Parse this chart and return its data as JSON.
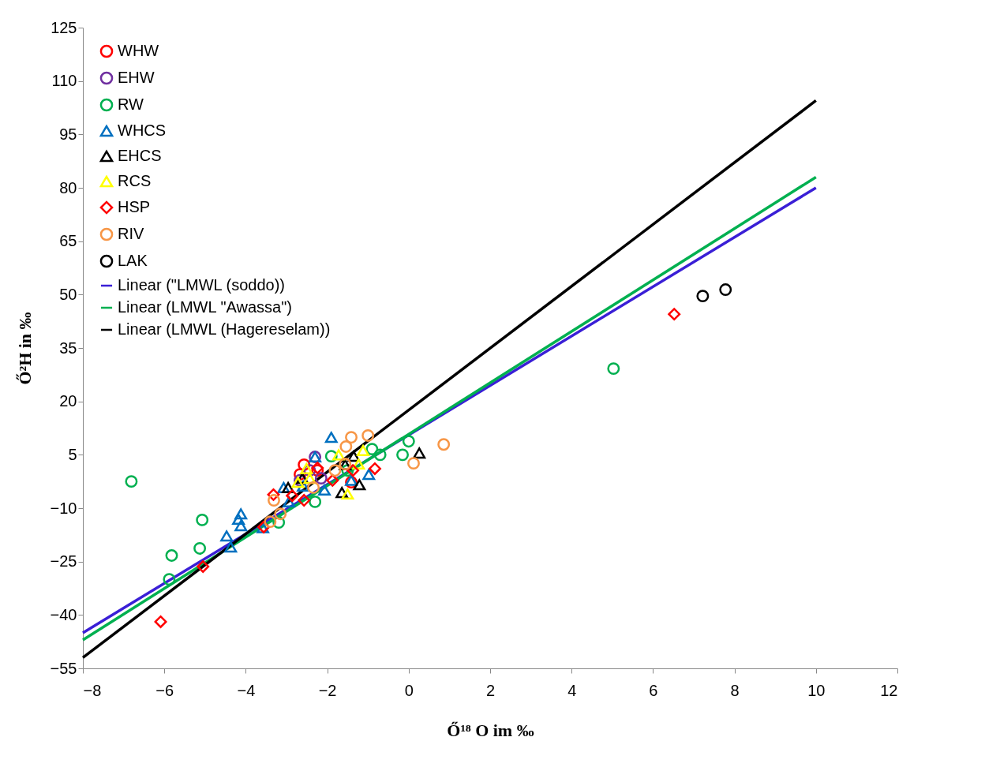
{
  "chart_data": {
    "type": "scatter",
    "xlabel": "Ő¹⁸ O im ‰",
    "ylabel": "Ő²H in ‰",
    "xlim": [
      -8,
      12
    ],
    "xticks": [
      -8,
      -6,
      -4,
      -2,
      0,
      2,
      4,
      6,
      8,
      10,
      12
    ],
    "ylim": [
      -55,
      125
    ],
    "yticks": [
      -55,
      -40,
      -25,
      -10,
      5,
      20,
      35,
      50,
      65,
      80,
      95,
      110,
      125
    ],
    "grid": false,
    "legend": "top left",
    "series": [
      {
        "name": "WHW",
        "color": "#ff0000",
        "marker": "circle",
        "x": [
          -2.57,
          -2.24,
          -2.67,
          -1.41
        ],
        "values": [
          2.2,
          0.6,
          -0.5,
          -2.7
        ]
      },
      {
        "name": "EHW",
        "color": "#7030a0",
        "marker": "circle",
        "x": [
          -2.3,
          -2.67,
          -2.43,
          -2.15
        ],
        "values": [
          4.4,
          -2.2,
          0.6,
          -1.6
        ]
      },
      {
        "name": "RW",
        "color": "#00b050",
        "marker": "circle",
        "x": [
          -6.81,
          -5.07,
          -5.82,
          -5.13,
          -5.88,
          -3.19,
          5.03,
          0,
          -0.15,
          -0.7,
          -0.9,
          -1.9,
          -2.3,
          -1.5
        ],
        "values": [
          -2.5,
          -13.3,
          -23.3,
          -21.3,
          -30,
          -14,
          29.2,
          8.8,
          5,
          5,
          6.6,
          4.6,
          -8.2,
          0.6
        ]
      },
      {
        "name": "WHCS",
        "color": "#0070c0",
        "marker": "triangle",
        "x": [
          -1.9,
          -4.12,
          -4.18,
          -4.12,
          -4.47,
          -4.37,
          -3.58,
          -3.07,
          -2.3,
          -2.59,
          -0.98,
          -2.07,
          -1.41,
          -2.94
        ],
        "values": [
          9.9,
          -11.6,
          -13.1,
          -14.9,
          -17.8,
          -20.9,
          -15.5,
          -4.2,
          4.4,
          -3.8,
          -0.5,
          -4.9,
          -2.2,
          -8.2
        ]
      },
      {
        "name": "EHCS",
        "color": "#000000",
        "marker": "triangle",
        "x": [
          0.26,
          -1.21,
          -1.64,
          -1.35,
          -2.61,
          -2.96,
          -1.56
        ],
        "values": [
          5.5,
          -3.4,
          -5.6,
          4.6,
          -1.6,
          -4.2,
          2.2
        ]
      },
      {
        "name": "RCS",
        "color": "#ffff00",
        "marker": "triangle",
        "x": [
          -1.12,
          -1.5,
          -1.72,
          -2.51,
          -2.43,
          -1.23,
          -2.72
        ],
        "values": [
          6.2,
          -6,
          5,
          1.1,
          -1.6,
          2.4,
          -2.7
        ]
      },
      {
        "name": "HSP",
        "color": "#ff0000",
        "marker": "diamond",
        "x": [
          6.52,
          -6.09,
          -5.05,
          -3.32,
          -3.56,
          -0.83,
          -2.24,
          -2.86,
          -1.87,
          -2.57,
          -1.37
        ],
        "values": [
          44.5,
          -41.9,
          -26.4,
          -6.2,
          -15.3,
          1.1,
          1.3,
          -6.5,
          -2.2,
          -7.8,
          0.6
        ]
      },
      {
        "name": "RIV",
        "color": "#f79646",
        "marker": "circle",
        "x": [
          0.86,
          0.12,
          -1.0,
          -1.41,
          -1.54,
          -3.31,
          -3.15,
          -3.4,
          -2.34,
          -1.81,
          -1.56
        ],
        "values": [
          7.9,
          2.6,
          10.4,
          9.9,
          7.3,
          -7.8,
          -11.6,
          -13.8,
          -4.2,
          0.6,
          2.4
        ]
      },
      {
        "name": "LAK",
        "color": "#000000",
        "marker": "circle",
        "x": [
          7.22,
          7.78
        ],
        "values": [
          49.6,
          51.4
        ]
      },
      {
        "name": "Linear (\"LMWL (soddo))",
        "type": "line",
        "color": "#3a1fd6",
        "x": [
          -8,
          10
        ],
        "values": [
          -45,
          80
        ]
      },
      {
        "name": "Linear (LMWL \"Awassa\")",
        "type": "line",
        "color": "#00b050",
        "x": [
          -8,
          10
        ],
        "values": [
          -47,
          83
        ]
      },
      {
        "name": "Linear (LMWL (Hagereselam))",
        "type": "line",
        "color": "#000000",
        "x": [
          -8,
          10
        ],
        "values": [
          -52,
          104.5
        ]
      }
    ]
  }
}
